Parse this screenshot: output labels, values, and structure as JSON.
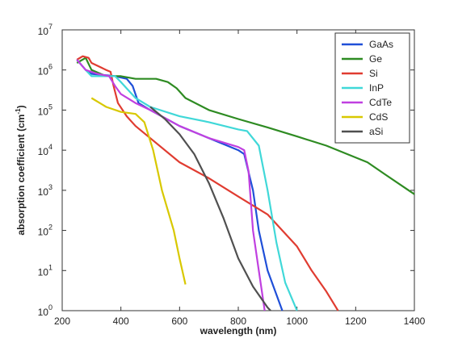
{
  "chart_data": {
    "type": "line",
    "x_label": "wavelength (nm)",
    "y_label": [
      "absorption coefficient (cm",
      "-1",
      ")"
    ],
    "xlim": [
      200,
      1400
    ],
    "xticks": [
      200,
      400,
      600,
      800,
      1000,
      1200,
      1400
    ],
    "ylim": [
      1,
      10000000
    ],
    "ylog": true,
    "yticks": [
      {
        "value": 1,
        "label": "10",
        "exponent": "0"
      },
      {
        "value": 10,
        "label": "10",
        "exponent": "1"
      },
      {
        "value": 100,
        "label": "10",
        "exponent": "2"
      },
      {
        "value": 1000,
        "label": "10",
        "exponent": "3"
      },
      {
        "value": 10000,
        "label": "10",
        "exponent": "4"
      },
      {
        "value": 100000,
        "label": "10",
        "exponent": "5"
      },
      {
        "value": 1000000,
        "label": "10",
        "exponent": "6"
      },
      {
        "value": 10000000,
        "label": "10",
        "exponent": "7"
      }
    ],
    "legend": "upper right",
    "series": [
      {
        "name": "GaAs",
        "color": "#1f4fd8",
        "x": [
          250,
          280,
          300,
          380,
          420,
          440,
          460,
          500,
          600,
          700,
          800,
          820,
          850,
          870,
          900,
          950
        ],
        "values": [
          1800000,
          1000000,
          800000,
          700000,
          600000,
          400000,
          150000,
          100000,
          40000,
          20000,
          10000,
          8000,
          1000,
          100,
          10,
          1
        ]
      },
      {
        "name": "Ge",
        "color": "#2e8b22",
        "x": [
          250,
          280,
          300,
          350,
          400,
          450,
          520,
          560,
          590,
          620,
          700,
          800,
          900,
          1000,
          1100,
          1240,
          1300,
          1400
        ],
        "values": [
          1500000,
          2000000,
          1000000,
          700000,
          700000,
          600000,
          600000,
          500000,
          350000,
          200000,
          100000,
          60000,
          37000,
          22000,
          13000,
          5000,
          2500,
          800
        ]
      },
      {
        "name": "Si",
        "color": "#e03c31",
        "x": [
          250,
          270,
          290,
          300,
          350,
          365,
          375,
          390,
          420,
          450,
          500,
          600,
          700,
          800,
          900,
          950,
          1000,
          1050,
          1100,
          1140
        ],
        "values": [
          1800000,
          2200000,
          2000000,
          1500000,
          1000000,
          900000,
          400000,
          150000,
          70000,
          40000,
          20000,
          5000,
          2000,
          700,
          250,
          100,
          40,
          10,
          3,
          1
        ]
      },
      {
        "name": "InP",
        "color": "#40d8d8",
        "x": [
          250,
          280,
          300,
          350,
          380,
          400,
          450,
          500,
          600,
          700,
          800,
          830,
          870,
          900,
          930,
          960,
          1000
        ],
        "values": [
          1800000,
          1000000,
          700000,
          700000,
          700000,
          500000,
          200000,
          120000,
          70000,
          50000,
          33000,
          30000,
          13000,
          1000,
          50,
          5,
          1
        ]
      },
      {
        "name": "CdTe",
        "color": "#c040e0",
        "x": [
          250,
          280,
          320,
          360,
          380,
          400,
          450,
          500,
          600,
          700,
          800,
          820,
          835,
          850,
          870,
          890
        ],
        "values": [
          1800000,
          1000000,
          800000,
          700000,
          400000,
          250000,
          150000,
          100000,
          40000,
          20000,
          12000,
          10000,
          3000,
          100,
          10,
          1
        ]
      },
      {
        "name": "CdS",
        "color": "#d8c800",
        "x": [
          300,
          350,
          400,
          450,
          480,
          510,
          540,
          580,
          600,
          620
        ],
        "values": [
          200000,
          120000,
          90000,
          80000,
          50000,
          10000,
          1000,
          100,
          20,
          4.5
        ]
      },
      {
        "name": "aSi",
        "color": "#505050",
        "x": [
          500,
          550,
          600,
          650,
          700,
          750,
          800,
          850,
          900,
          910
        ],
        "values": [
          120000,
          60000,
          25000,
          8000,
          1500,
          200,
          20,
          4,
          1.2,
          1
        ]
      }
    ]
  }
}
